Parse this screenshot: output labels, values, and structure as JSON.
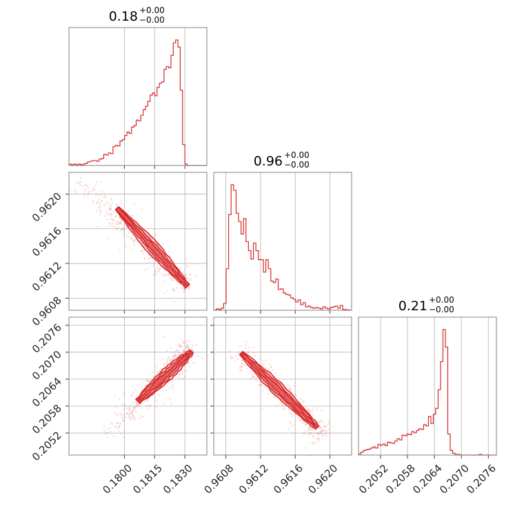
{
  "chart_data": {
    "type": "corner",
    "color": "#d62728",
    "grid": true,
    "parameters": [
      {
        "title": {
          "value": "0.18",
          "plus": "+0.00",
          "minus": "−0.00"
        },
        "range": [
          0.17725,
          0.18409
        ],
        "ticks": [
          {
            "v": 0.18,
            "label": "0.1800"
          },
          {
            "v": 0.1815,
            "label": "0.1815"
          },
          {
            "v": 0.183,
            "label": "0.1830"
          }
        ],
        "hist": {
          "bin_width": 0.000115,
          "counts": [
            2,
            1,
            2,
            1,
            2,
            1,
            2,
            3,
            5,
            6,
            7,
            7,
            6,
            9,
            10,
            16,
            15,
            18,
            17,
            27,
            29,
            28,
            35,
            37,
            43,
            48,
            46,
            55,
            57,
            65,
            64,
            72,
            80,
            85,
            92,
            101,
            104,
            100,
            112,
            118,
            120,
            138,
            142,
            140,
            158,
            176,
            180,
            170,
            108,
            30,
            2,
            0
          ]
        }
      },
      {
        "title": {
          "value": "0.96",
          "plus": "+0.00",
          "minus": "−0.00"
        },
        "range": [
          0.96066,
          0.96225
        ],
        "ticks": [
          {
            "v": 0.9608,
            "label": "0.9608"
          },
          {
            "v": 0.9612,
            "label": "0.9612"
          },
          {
            "v": 0.9616,
            "label": "0.9616"
          },
          {
            "v": 0.962,
            "label": "0.9620"
          }
        ],
        "hist": {
          "bin_width": 2.86e-05,
          "counts": [
            0,
            2,
            1,
            3,
            10,
            60,
            138,
            181,
            173,
            140,
            128,
            110,
            132,
            99,
            86,
            74,
            97,
            86,
            73,
            73,
            55,
            73,
            60,
            42,
            40,
            45,
            30,
            31,
            25,
            23,
            22,
            18,
            16,
            12,
            15,
            8,
            11,
            5,
            6,
            4,
            3,
            4,
            3,
            2,
            5,
            3,
            2,
            4,
            5,
            6,
            3,
            7,
            1
          ]
        }
      },
      {
        "title": {
          "value": "0.21",
          "plus": "+0.00",
          "minus": "−0.00"
        },
        "range": [
          0.20471,
          0.20778
        ],
        "ticks": [
          {
            "v": 0.2052,
            "label": "0.2052"
          },
          {
            "v": 0.2058,
            "label": "0.2058"
          },
          {
            "v": 0.2064,
            "label": "0.2064"
          },
          {
            "v": 0.207,
            "label": "0.2070"
          },
          {
            "v": 0.2076,
            "label": "0.2076"
          }
        ],
        "hist": {
          "bin_width": 5.37e-05,
          "counts": [
            2,
            5,
            8,
            9,
            10,
            12,
            14,
            12,
            18,
            17,
            19,
            16,
            22,
            21,
            20,
            24,
            28,
            26,
            34,
            33,
            36,
            35,
            40,
            38,
            42,
            45,
            44,
            52,
            50,
            66,
            54,
            70,
            80,
            112,
            160,
            215,
            185,
            36,
            8,
            3,
            1,
            1,
            0,
            0,
            0,
            0,
            0,
            0,
            0,
            0,
            1,
            0,
            0,
            0,
            0,
            0,
            0
          ]
        }
      }
    ]
  }
}
